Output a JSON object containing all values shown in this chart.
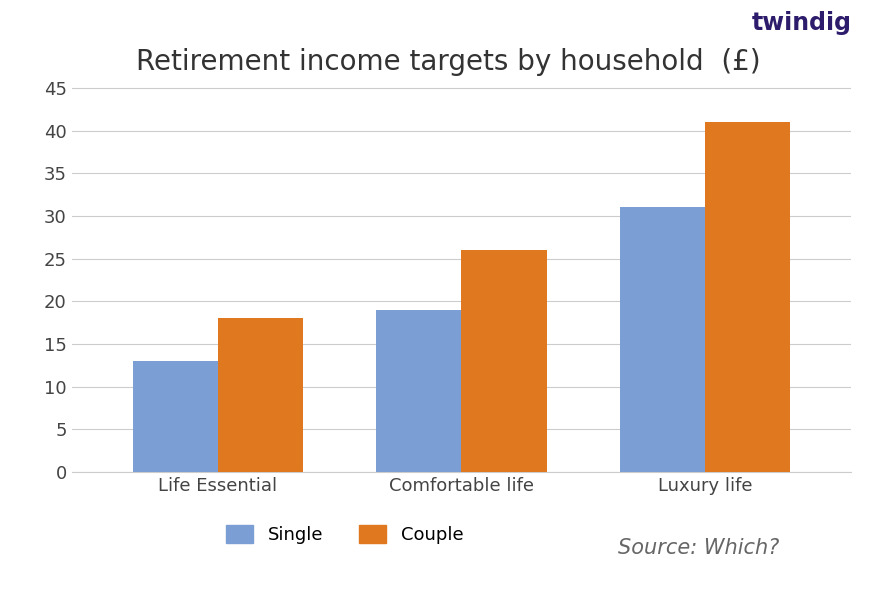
{
  "title": "Retirement income targets by household  (£)",
  "categories": [
    "Life Essential",
    "Comfortable life",
    "Luxury life"
  ],
  "single_values": [
    13,
    19,
    31
  ],
  "couple_values": [
    18,
    26,
    41
  ],
  "single_color": "#7b9fd4",
  "couple_color": "#e07820",
  "ylim": [
    0,
    47
  ],
  "yticks": [
    0,
    5,
    10,
    15,
    20,
    25,
    30,
    35,
    40,
    45
  ],
  "legend_single": "Single",
  "legend_couple": "Couple",
  "source_text": "Source: Which?",
  "bar_width": 0.35,
  "background_color": "#ffffff",
  "header_bg_color": "#111111",
  "title_fontsize": 20,
  "tick_fontsize": 13,
  "legend_fontsize": 13,
  "source_fontsize": 15,
  "twindig_text": "twindig",
  "twindig_color": "#1ab8c4"
}
